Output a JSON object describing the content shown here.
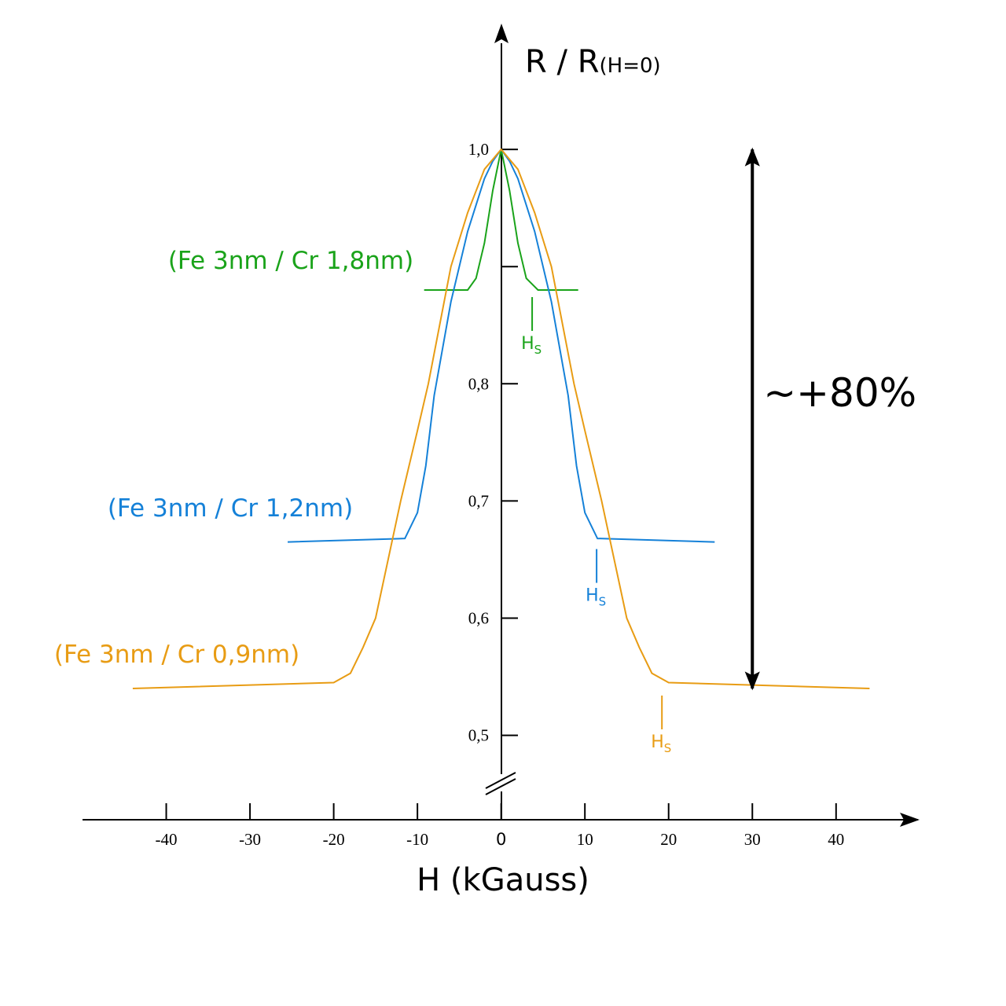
{
  "chart_data": {
    "type": "line",
    "x_label": "H (kGauss)",
    "y_label": "R / R",
    "y_label_sub": "(H=0)",
    "xlim": [
      -50,
      49.5
    ],
    "ylim": [
      0.428,
      1.104
    ],
    "xticks": [
      -40,
      -30,
      -20,
      -10,
      0,
      10,
      20,
      30,
      40
    ],
    "yticks": [
      {
        "value": 0.5,
        "label": "0,5"
      },
      {
        "value": 0.6,
        "label": "0,6"
      },
      {
        "value": 0.7,
        "label": "0,7"
      },
      {
        "value": 0.8,
        "label": "0,8"
      },
      {
        "value": 0.9
      },
      {
        "value": 1.0,
        "label": "1,0"
      }
    ],
    "series": [
      {
        "name": "(Fe 3nm / Cr 1,8nm)",
        "color": "#1aa31a",
        "x": [
          -9.2,
          -4,
          -3,
          -2,
          -1,
          0,
          1,
          2,
          3,
          4.4,
          9.2
        ],
        "values": [
          0.88,
          0.88,
          0.89,
          0.92,
          0.965,
          1.0,
          0.965,
          0.92,
          0.89,
          0.88,
          0.88
        ],
        "hs": 3.7
      },
      {
        "name": "(Fe 3nm / Cr 1,2nm)",
        "color": "#1581d8",
        "x": [
          -25.5,
          -11.5,
          -10,
          -9,
          -8,
          -6,
          -4,
          -2,
          -1,
          0,
          1,
          2,
          4,
          6,
          8,
          9,
          10,
          11.5,
          25.5
        ],
        "values": [
          0.665,
          0.668,
          0.69,
          0.73,
          0.79,
          0.87,
          0.93,
          0.975,
          0.99,
          1.0,
          0.99,
          0.975,
          0.93,
          0.87,
          0.79,
          0.73,
          0.69,
          0.668,
          0.665
        ],
        "hs": 11.4
      },
      {
        "name": "(Fe 3nm / Cr 0,9nm)",
        "color": "#e89c14",
        "x": [
          -44,
          -20,
          -18,
          -16.5,
          -15,
          -12,
          -10,
          -8.7,
          -6,
          -4,
          -2,
          0,
          2,
          4,
          6,
          8.7,
          10,
          12,
          15,
          16.5,
          18,
          20,
          44
        ],
        "values": [
          0.54,
          0.545,
          0.553,
          0.575,
          0.6,
          0.7,
          0.76,
          0.8,
          0.9,
          0.946,
          0.983,
          1.0,
          0.983,
          0.946,
          0.9,
          0.8,
          0.76,
          0.7,
          0.6,
          0.575,
          0.553,
          0.545,
          0.54
        ],
        "hs": 19.2
      }
    ],
    "hs_label": "H",
    "hs_sub": "S",
    "annotation": {
      "text": "~+80%",
      "x": 30,
      "from": 1.0,
      "to": 0.54
    }
  }
}
